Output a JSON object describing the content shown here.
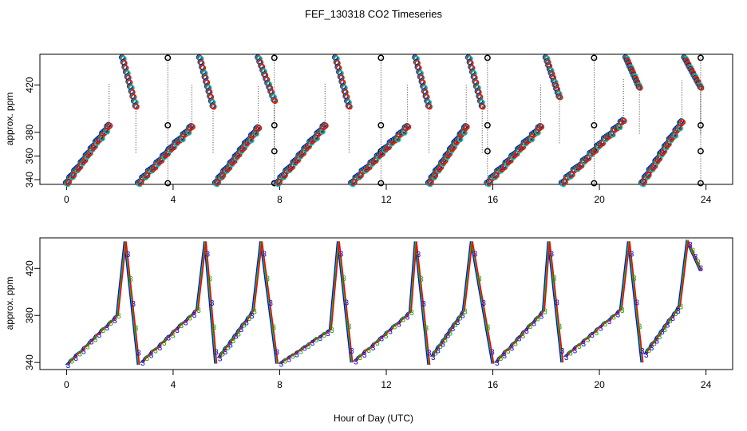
{
  "chart_data": {
    "type": "scatter",
    "title": "FEF_130318  CO2 Timeseries",
    "xlabel": "Hour of Day (UTC)",
    "series_colors": [
      "#0000ff",
      "#00cc00",
      "#ff0000",
      "#00cccc"
    ],
    "reference_color": "#000000",
    "panels": [
      {
        "ylabel": "approx. ppm",
        "xlim": [
          -1,
          25
        ],
        "ylim": [
          336,
          446
        ],
        "xticks": [
          "0",
          "4",
          "8",
          "12",
          "16",
          "20",
          "24"
        ],
        "yticks": [
          "340",
          "360",
          "380",
          "420"
        ],
        "cycles": [
          {
            "t0": 0.0,
            "t_ramp_end": 1.6,
            "v_start": 337,
            "v_mid": 386,
            "t_peak": 2.1,
            "peak": 443,
            "t_fall_end": 2.6,
            "v_fall_end": 402
          },
          {
            "t0": 2.7,
            "t_ramp_end": 4.7,
            "v_start": 337,
            "v_mid": 385,
            "t_peak": 5.0,
            "peak": 443,
            "t_fall_end": 5.5,
            "v_fall_end": 402
          },
          {
            "t0": 5.6,
            "t_ramp_end": 7.2,
            "v_start": 337,
            "v_mid": 384,
            "t_peak": 7.2,
            "peak": 443,
            "t_fall_end": 7.8,
            "v_fall_end": 407
          },
          {
            "t0": 7.9,
            "t_ramp_end": 9.7,
            "v_start": 337,
            "v_mid": 386,
            "t_peak": 10.1,
            "peak": 443,
            "t_fall_end": 10.6,
            "v_fall_end": 402
          },
          {
            "t0": 10.7,
            "t_ramp_end": 12.8,
            "v_start": 337,
            "v_mid": 385,
            "t_peak": 13.1,
            "peak": 443,
            "t_fall_end": 13.6,
            "v_fall_end": 402
          },
          {
            "t0": 13.6,
            "t_ramp_end": 15.0,
            "v_start": 337,
            "v_mid": 385,
            "t_peak": 15.1,
            "peak": 443,
            "t_fall_end": 15.6,
            "v_fall_end": 402
          },
          {
            "t0": 15.8,
            "t_ramp_end": 17.8,
            "v_start": 337,
            "v_mid": 385,
            "t_peak": 18.0,
            "peak": 443,
            "t_fall_end": 18.5,
            "v_fall_end": 410
          },
          {
            "t0": 18.6,
            "t_ramp_end": 20.9,
            "v_start": 337,
            "v_mid": 390,
            "t_peak": 21.0,
            "peak": 443,
            "t_fall_end": 21.5,
            "v_fall_end": 418
          },
          {
            "t0": 21.6,
            "t_ramp_end": 23.1,
            "v_start": 337,
            "v_mid": 389,
            "t_peak": 23.2,
            "peak": 443,
            "t_fall_end": 23.8,
            "v_fall_end": 418
          }
        ],
        "reference_times": [
          3.8,
          7.8,
          11.8,
          15.8,
          19.8,
          23.8
        ],
        "reference_levels": [
          443,
          386,
          364,
          337
        ]
      },
      {
        "ylabel": "approx. ppm",
        "xlim": [
          -1,
          25
        ],
        "ylim": [
          334,
          446
        ],
        "xticks": [
          "0",
          "4",
          "8",
          "12",
          "16",
          "20",
          "24"
        ],
        "yticks": [
          "340",
          "380",
          "420"
        ],
        "point_label": "3",
        "cycles": [
          {
            "t0": 0.0,
            "t_ramp_end": 1.9,
            "v_start": 338,
            "v_mid": 380,
            "t_peak": 2.2,
            "peak": 443,
            "t_fall_end": 2.7,
            "v_fall_end": 338
          },
          {
            "t0": 2.8,
            "t_ramp_end": 4.9,
            "v_start": 340,
            "v_mid": 385,
            "t_peak": 5.2,
            "peak": 443,
            "t_fall_end": 5.6,
            "v_fall_end": 339
          },
          {
            "t0": 5.7,
            "t_ramp_end": 7.0,
            "v_start": 344,
            "v_mid": 384,
            "t_peak": 7.3,
            "peak": 443,
            "t_fall_end": 7.9,
            "v_fall_end": 339
          },
          {
            "t0": 8.0,
            "t_ramp_end": 9.9,
            "v_start": 339,
            "v_mid": 368,
            "t_peak": 10.2,
            "peak": 443,
            "t_fall_end": 10.7,
            "v_fall_end": 340
          },
          {
            "t0": 10.8,
            "t_ramp_end": 12.9,
            "v_start": 341,
            "v_mid": 383,
            "t_peak": 13.1,
            "peak": 443,
            "t_fall_end": 13.6,
            "v_fall_end": 338
          },
          {
            "t0": 13.7,
            "t_ramp_end": 14.9,
            "v_start": 345,
            "v_mid": 384,
            "t_peak": 15.2,
            "peak": 443,
            "t_fall_end": 16.0,
            "v_fall_end": 339
          },
          {
            "t0": 16.1,
            "t_ramp_end": 17.9,
            "v_start": 340,
            "v_mid": 384,
            "t_peak": 18.1,
            "peak": 443,
            "t_fall_end": 18.6,
            "v_fall_end": 340
          },
          {
            "t0": 18.7,
            "t_ramp_end": 20.8,
            "v_start": 345,
            "v_mid": 385,
            "t_peak": 21.1,
            "peak": 443,
            "t_fall_end": 21.6,
            "v_fall_end": 340
          },
          {
            "t0": 21.7,
            "t_ramp_end": 23.0,
            "v_start": 347,
            "v_mid": 388,
            "t_peak": 23.3,
            "peak": 443,
            "t_fall_end": 23.8,
            "v_fall_end": 418
          }
        ]
      }
    ]
  }
}
